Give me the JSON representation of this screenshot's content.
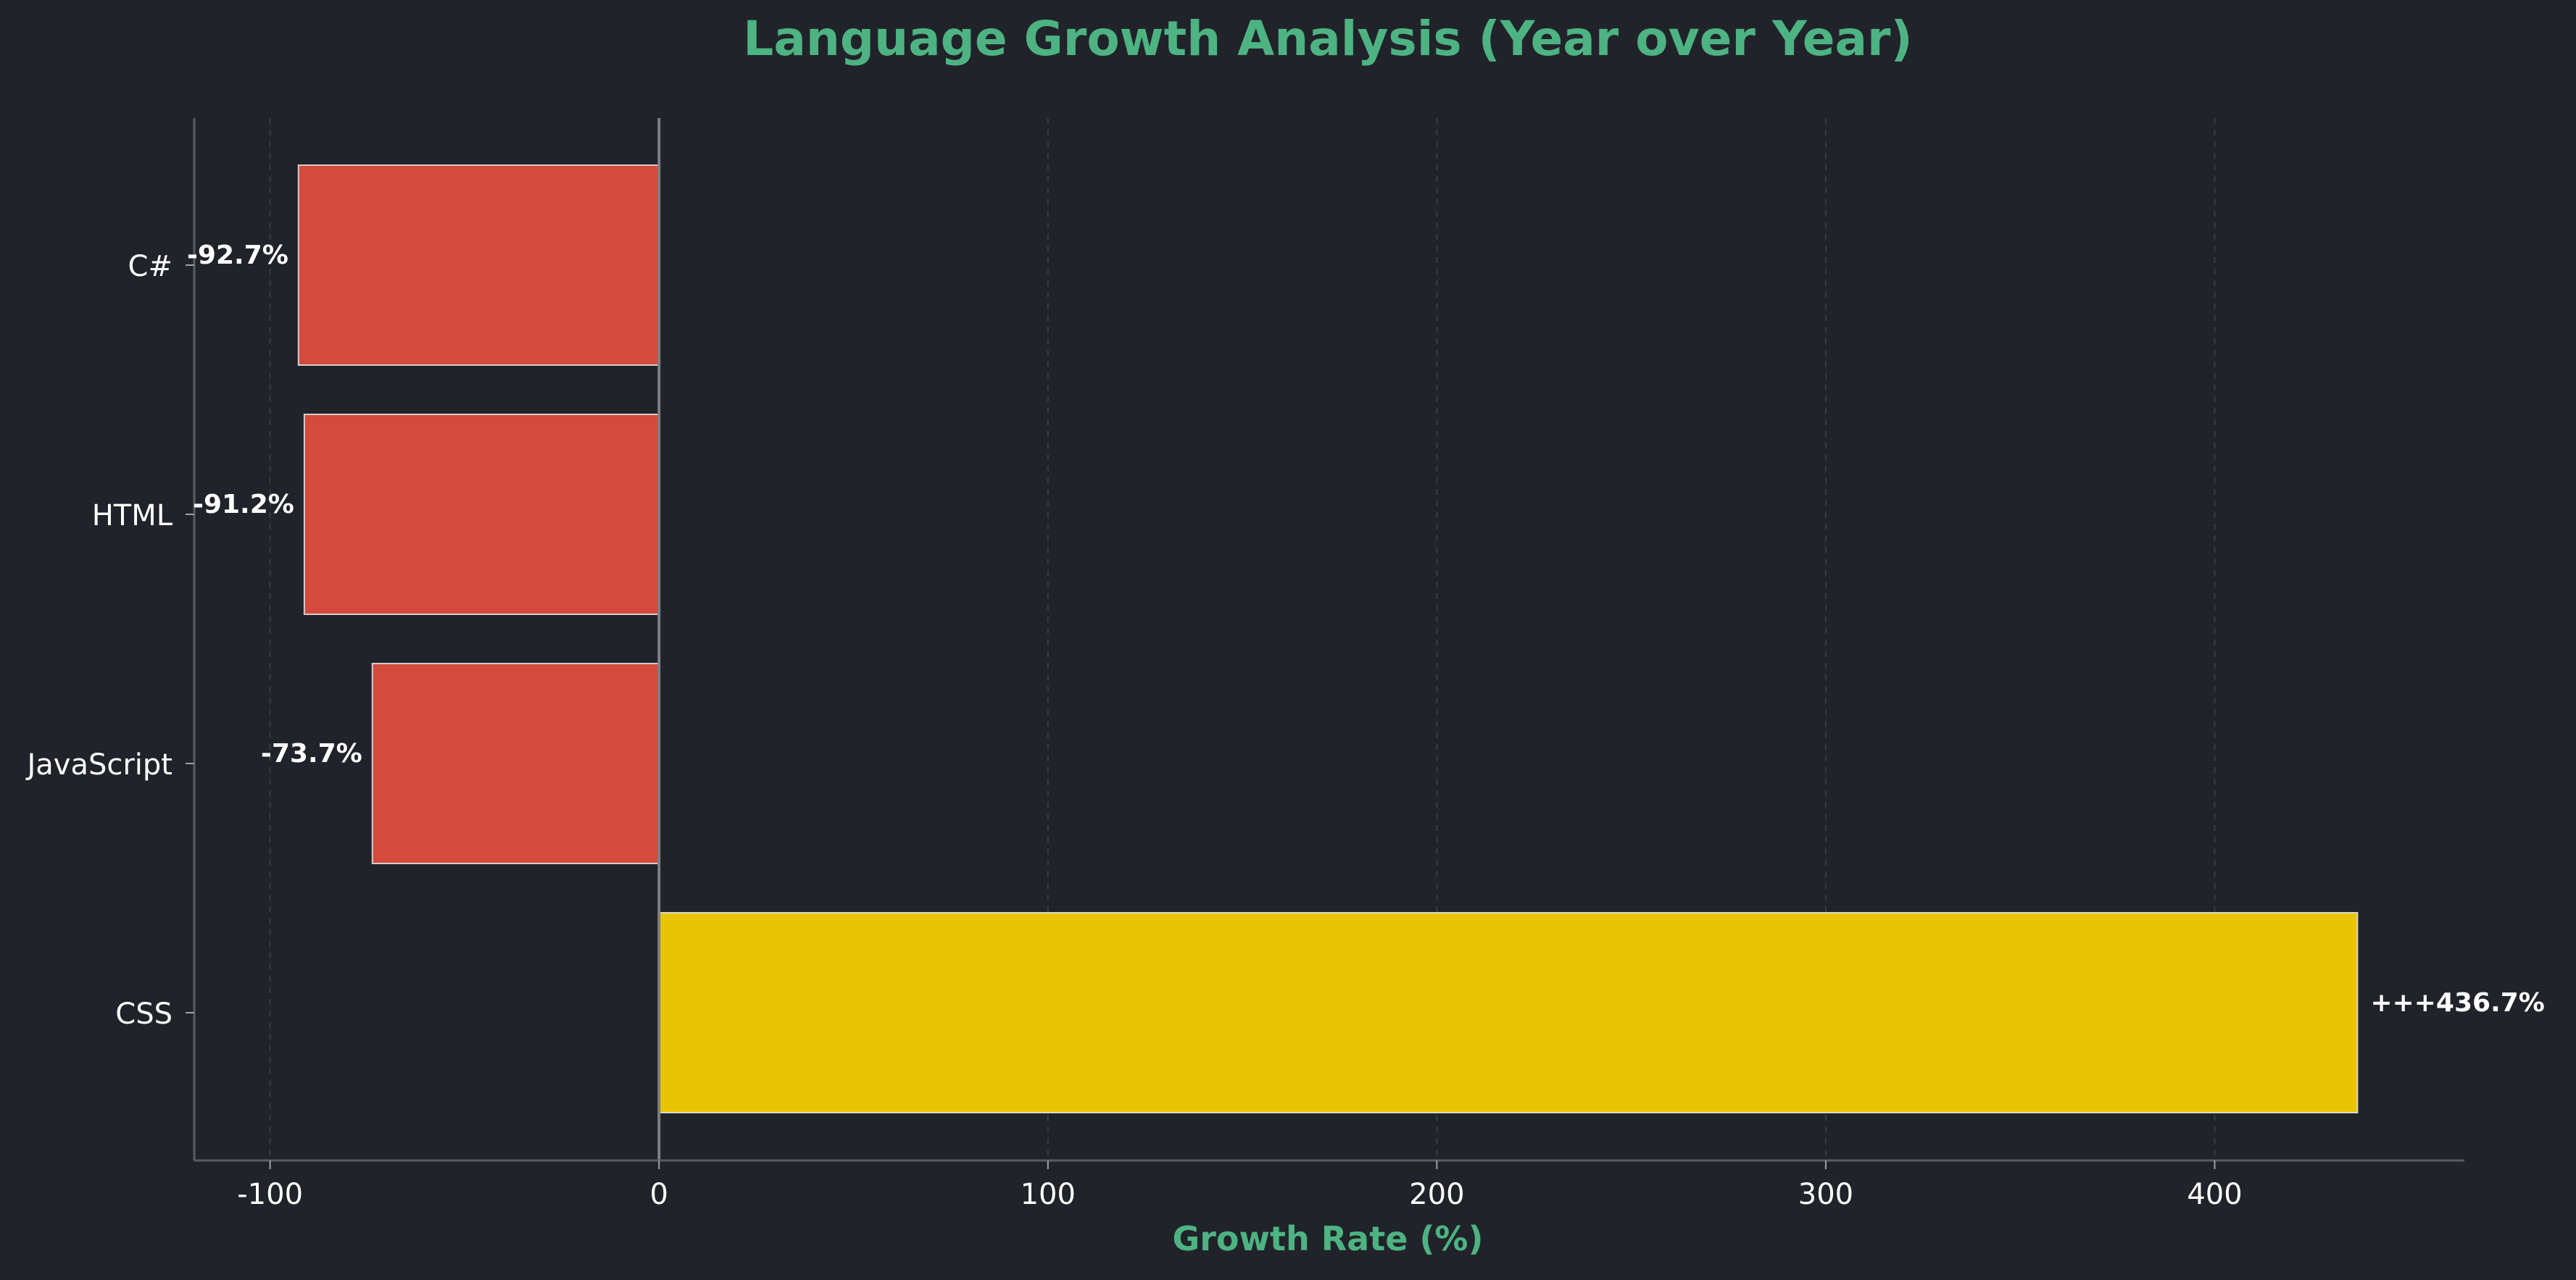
{
  "chart_data": {
    "type": "bar",
    "orientation": "horizontal",
    "title": "Language Growth Analysis (Year over Year)",
    "xlabel": "Growth Rate (%)",
    "ylabel": "",
    "xlim": [
      -119.5,
      464.2
    ],
    "xticks": [
      -100,
      0,
      100,
      200,
      300,
      400
    ],
    "xtick_labels": [
      "-100",
      "0",
      "100",
      "200",
      "300",
      "400"
    ],
    "grid": "vertical-dashed",
    "legend": "none",
    "categories": [
      "C#",
      "HTML",
      "JavaScript",
      "CSS"
    ],
    "values": [
      -92.7,
      -91.2,
      -73.7,
      436.7
    ],
    "data_labels": [
      "-92.7%",
      "-91.2%",
      "-73.7%",
      "+++436.7%"
    ],
    "colors": {
      "background": "#21232a",
      "negative": "#d44a3c",
      "positive": "#e8c404",
      "accent": "#4db382",
      "text": "#ffffff",
      "axis": "#5a5c62"
    }
  }
}
